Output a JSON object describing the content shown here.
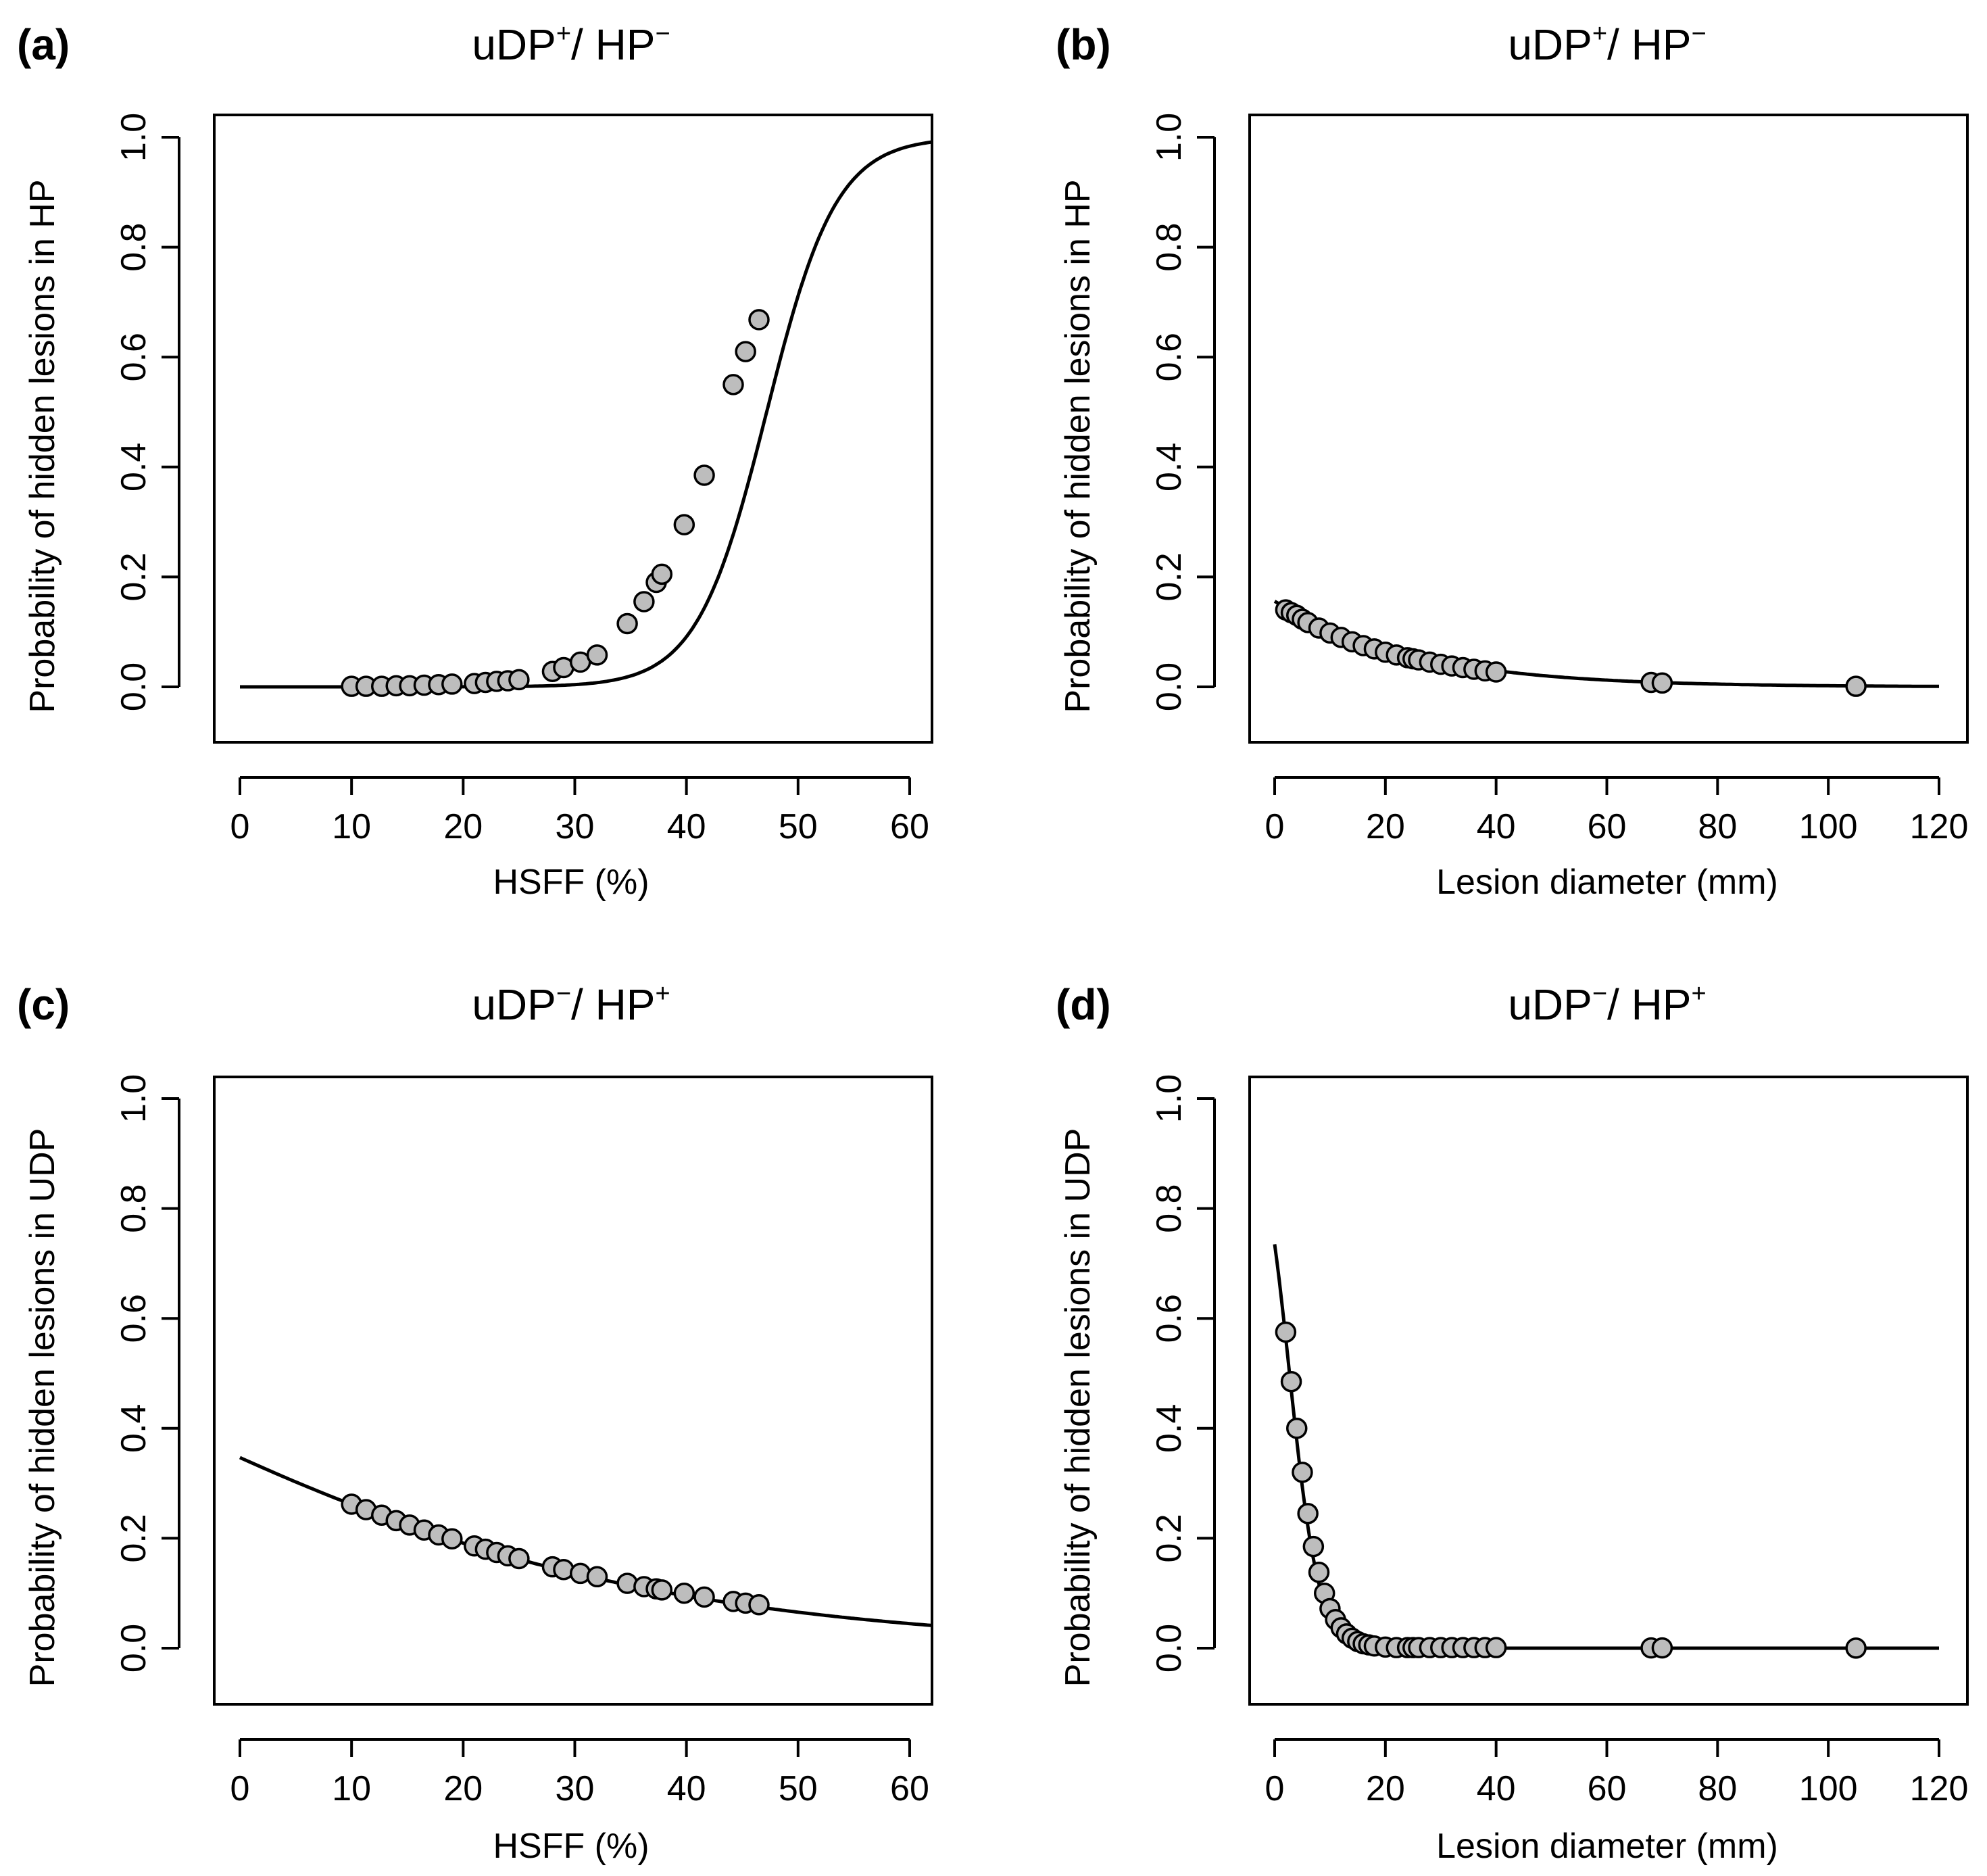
{
  "chart_data": [
    {
      "type": "scatter",
      "panel": "(a)",
      "title_main": "uDP",
      "title_sup1": "+",
      "title_mid": "/ HP",
      "title_sup2": "−",
      "xlabel": "HSFF (%)",
      "ylabel": "Probability of hidden lesions in HP",
      "xlim": [
        0,
        62
      ],
      "ylim": [
        0,
        1
      ],
      "xticks": [
        0,
        10,
        20,
        30,
        40,
        50,
        60
      ],
      "yticks": [
        0.0,
        0.2,
        0.4,
        0.6,
        0.8,
        1.0
      ],
      "xtick_labels": [
        "0",
        "10",
        "20",
        "30",
        "40",
        "50",
        "60"
      ],
      "ytick_labels": [
        "0.0",
        "0.2",
        "0.4",
        "0.6",
        "0.8",
        "1.0"
      ],
      "grid": false,
      "curve": {
        "model": "logistic",
        "intercept": -15.1,
        "slope": 0.32,
        "x_range": [
          0,
          62
        ]
      },
      "points": {
        "x": [
          10,
          11.3,
          12.7,
          14,
          15.2,
          16.5,
          17.8,
          19,
          21,
          22,
          23,
          24,
          25,
          28,
          29,
          30.5,
          32,
          34.7,
          36.2,
          37.3,
          37.8,
          39.8,
          41.6,
          44.2,
          45.3,
          46.5
        ],
        "y": [
          0.001,
          0.001,
          0.001,
          0.002,
          0.002,
          0.003,
          0.004,
          0.005,
          0.006,
          0.008,
          0.01,
          0.011,
          0.013,
          0.028,
          0.035,
          0.045,
          0.058,
          0.115,
          0.155,
          0.19,
          0.205,
          0.295,
          0.385,
          0.55,
          0.61,
          0.668
        ]
      }
    },
    {
      "type": "scatter",
      "panel": "(b)",
      "title_main": "uDP",
      "title_sup1": "+",
      "title_mid": "/ HP",
      "title_sup2": "−",
      "xlabel": "Lesion diameter (mm)",
      "ylabel": "Probability of hidden lesions in HP",
      "xlim": [
        0,
        120
      ],
      "ylim": [
        0,
        1
      ],
      "xticks": [
        0,
        20,
        40,
        60,
        80,
        100,
        120
      ],
      "yticks": [
        0.0,
        0.2,
        0.4,
        0.6,
        0.8,
        1.0
      ],
      "xtick_labels": [
        "0",
        "20",
        "40",
        "60",
        "80",
        "100",
        "120"
      ],
      "ytick_labels": [
        "0.0",
        "0.2",
        "0.4",
        "0.6",
        "0.8",
        "1.0"
      ],
      "grid": false,
      "curve": {
        "model": "logistic",
        "intercept": -1.69,
        "slope": -0.045,
        "x_range": [
          0,
          120
        ]
      },
      "points": {
        "x": [
          2,
          3,
          4,
          5,
          6,
          8,
          10,
          12,
          14,
          16,
          18,
          20,
          22,
          24,
          25,
          26,
          28,
          30,
          32,
          34,
          36,
          38,
          40,
          68,
          70,
          105
        ],
        "y": [
          0.14,
          0.135,
          0.13,
          0.123,
          0.117,
          0.107,
          0.098,
          0.09,
          0.082,
          0.075,
          0.069,
          0.063,
          0.058,
          0.053,
          0.051,
          0.049,
          0.045,
          0.041,
          0.038,
          0.035,
          0.032,
          0.029,
          0.027,
          0.008,
          0.007,
          0.001
        ]
      }
    },
    {
      "type": "scatter",
      "panel": "(c)",
      "title_main": "uDP",
      "title_sup1": "−",
      "title_mid": "/ HP",
      "title_sup2": "+",
      "xlabel": "HSFF (%)",
      "ylabel": "Probability of hidden lesions in UDP",
      "xlim": [
        0,
        62
      ],
      "ylim": [
        0,
        1
      ],
      "xticks": [
        0,
        10,
        20,
        30,
        40,
        50,
        60
      ],
      "yticks": [
        0.0,
        0.2,
        0.4,
        0.6,
        0.8,
        1.0
      ],
      "xtick_labels": [
        "0",
        "10",
        "20",
        "30",
        "40",
        "50",
        "60"
      ],
      "ytick_labels": [
        "0.0",
        "0.2",
        "0.4",
        "0.6",
        "0.8",
        "1.0"
      ],
      "grid": false,
      "curve": {
        "model": "logistic",
        "intercept": -0.633,
        "slope": -0.0405,
        "x_range": [
          0,
          62
        ]
      },
      "points": {
        "x": [
          10,
          11.3,
          12.7,
          14,
          15.2,
          16.5,
          17.8,
          19,
          21,
          22,
          23,
          24,
          25,
          28,
          29,
          30.5,
          32,
          34.7,
          36.2,
          37.3,
          37.8,
          39.8,
          41.6,
          44.2,
          45.3,
          46.5
        ],
        "y": [
          0.262,
          0.252,
          0.242,
          0.232,
          0.224,
          0.215,
          0.206,
          0.199,
          0.186,
          0.18,
          0.174,
          0.168,
          0.163,
          0.148,
          0.143,
          0.136,
          0.13,
          0.118,
          0.112,
          0.108,
          0.106,
          0.1,
          0.093,
          0.085,
          0.082,
          0.079
        ]
      }
    },
    {
      "type": "scatter",
      "panel": "(d)",
      "title_main": "uDP",
      "title_sup1": "−",
      "title_mid": "/ HP",
      "title_sup2": "+",
      "xlabel": "Lesion diameter (mm)",
      "ylabel": "Probability of hidden lesions in UDP",
      "xlim": [
        0,
        120
      ],
      "ylim": [
        0,
        1
      ],
      "xticks": [
        0,
        20,
        40,
        60,
        80,
        100,
        120
      ],
      "yticks": [
        0.0,
        0.2,
        0.4,
        0.6,
        0.8,
        1.0
      ],
      "xtick_labels": [
        "0",
        "20",
        "40",
        "60",
        "80",
        "100",
        "120"
      ],
      "ytick_labels": [
        "0.0",
        "0.2",
        "0.4",
        "0.6",
        "0.8",
        "1.0"
      ],
      "grid": false,
      "curve": {
        "model": "logistic",
        "intercept": 1.02,
        "slope": -0.38,
        "x_range": [
          0,
          120
        ]
      },
      "points": {
        "x": [
          2,
          3,
          4,
          5,
          6,
          7,
          8,
          9,
          10,
          11,
          12,
          13,
          14,
          15,
          16,
          17,
          18,
          20,
          22,
          24,
          25,
          26,
          28,
          30,
          32,
          34,
          36,
          38,
          40,
          68,
          70,
          105
        ],
        "y": [
          0.575,
          0.485,
          0.4,
          0.32,
          0.245,
          0.185,
          0.138,
          0.1,
          0.072,
          0.052,
          0.037,
          0.026,
          0.018,
          0.012,
          0.008,
          0.006,
          0.004,
          0.002,
          0.001,
          0.001,
          0.001,
          0.001,
          0.001,
          0.001,
          0.001,
          0.001,
          0.001,
          0.001,
          0.001,
          0.0005,
          0.0005,
          0.0002
        ]
      }
    }
  ]
}
